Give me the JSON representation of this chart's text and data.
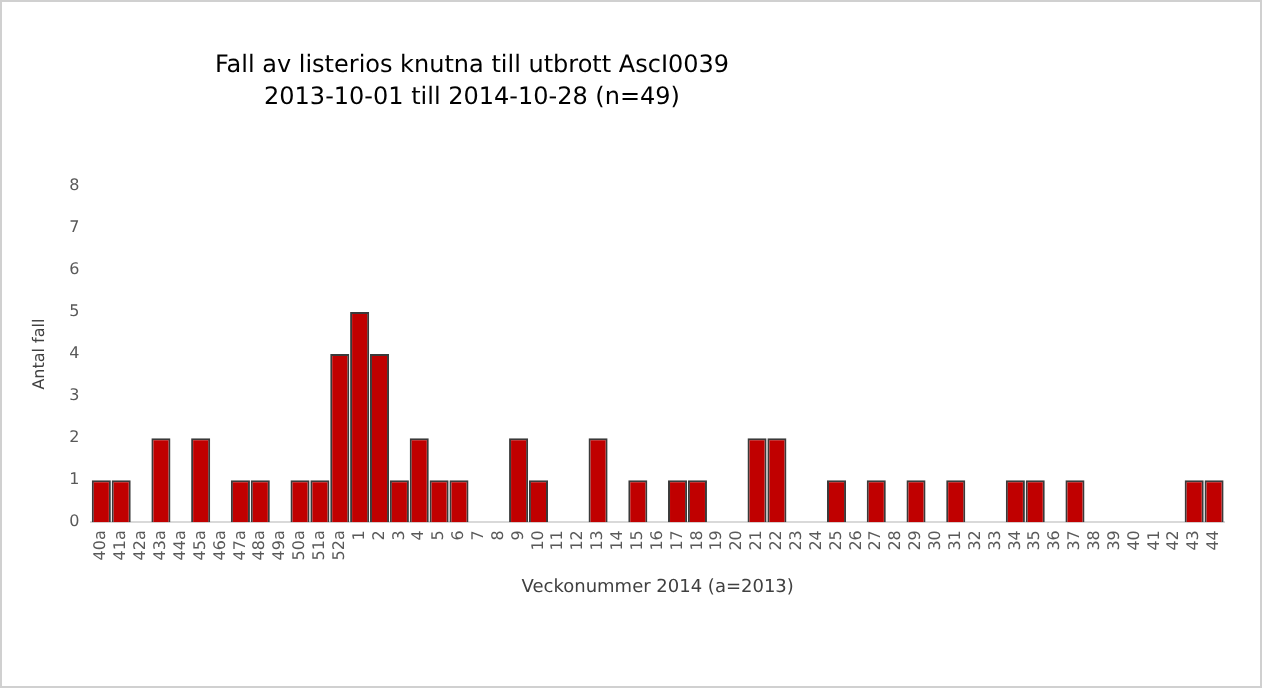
{
  "chart_data": {
    "type": "bar",
    "title": "Fall av listerios knutna till utbrott AscI0039",
    "subtitle": "2013-10-01 till 2014-10-28 (n=49)",
    "xlabel": "Veckonummer 2014 (a=2013)",
    "ylabel": "Antal fall",
    "categories": [
      "40a",
      "41a",
      "42a",
      "43a",
      "44a",
      "45a",
      "46a",
      "47a",
      "48a",
      "49a",
      "50a",
      "51a",
      "52a",
      "1",
      "2",
      "3",
      "4",
      "5",
      "6",
      "7",
      "8",
      "9",
      "10",
      "11",
      "12",
      "13",
      "14",
      "15",
      "16",
      "17",
      "18",
      "19",
      "20",
      "21",
      "22",
      "23",
      "24",
      "25",
      "26",
      "27",
      "28",
      "29",
      "30",
      "31",
      "32",
      "33",
      "34",
      "35",
      "36",
      "37",
      "38",
      "39",
      "40",
      "41",
      "42",
      "43",
      "44"
    ],
    "values": [
      1,
      1,
      0,
      2,
      0,
      2,
      0,
      1,
      1,
      0,
      1,
      1,
      4,
      5,
      4,
      1,
      2,
      1,
      1,
      0,
      0,
      2,
      1,
      0,
      0,
      2,
      0,
      1,
      0,
      1,
      1,
      0,
      0,
      2,
      2,
      0,
      0,
      1,
      0,
      1,
      0,
      1,
      0,
      1,
      0,
      0,
      1,
      1,
      0,
      1,
      0,
      0,
      0,
      0,
      0,
      1,
      1
    ],
    "color": "#c00000",
    "ylim": [
      0,
      8
    ],
    "yticks": [
      0,
      1,
      2,
      3,
      4,
      5,
      6,
      7,
      8
    ],
    "grid": false,
    "legend": false
  }
}
